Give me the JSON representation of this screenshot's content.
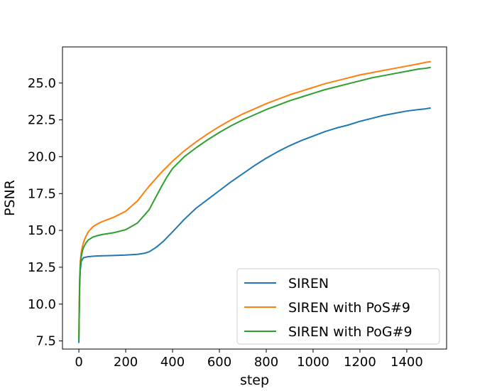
{
  "chart_data": {
    "type": "line",
    "title": "",
    "xlabel": "step",
    "ylabel": "PSNR",
    "xlim": [
      -70,
      1570
    ],
    "ylim": [
      6.95,
      27.45
    ],
    "xticks": [
      0,
      200,
      400,
      600,
      800,
      1000,
      1200,
      1400
    ],
    "yticks": [
      7.5,
      10.0,
      12.5,
      15.0,
      17.5,
      20.0,
      22.5,
      25.0
    ],
    "ytick_labels": [
      "7.5",
      "10.0",
      "12.5",
      "15.0",
      "17.5",
      "20.0",
      "22.5",
      "25.0"
    ],
    "grid": false,
    "legend_position": "lower-right",
    "series": [
      {
        "name": "SIREN",
        "color": "#1f77b4",
        "x": [
          0,
          3,
          6,
          10,
          20,
          40,
          80,
          150,
          200,
          250,
          280,
          300,
          330,
          360,
          400,
          450,
          500,
          550,
          600,
          650,
          700,
          750,
          800,
          850,
          900,
          950,
          1000,
          1050,
          1100,
          1150,
          1200,
          1250,
          1300,
          1350,
          1400,
          1450,
          1480,
          1500
        ],
        "y": [
          7.4,
          11.0,
          12.3,
          12.9,
          13.15,
          13.22,
          13.27,
          13.3,
          13.33,
          13.38,
          13.45,
          13.55,
          13.85,
          14.25,
          14.9,
          15.75,
          16.5,
          17.1,
          17.7,
          18.3,
          18.85,
          19.4,
          19.9,
          20.35,
          20.75,
          21.1,
          21.4,
          21.7,
          21.95,
          22.15,
          22.4,
          22.6,
          22.8,
          22.95,
          23.1,
          23.2,
          23.25,
          23.3
        ]
      },
      {
        "name": "SIREN with PoS#9",
        "color": "#ff7f0e",
        "x": [
          0,
          3,
          6,
          10,
          15,
          20,
          30,
          40,
          60,
          80,
          100,
          150,
          200,
          250,
          300,
          350,
          400,
          450,
          500,
          550,
          600,
          650,
          700,
          750,
          800,
          850,
          900,
          950,
          1000,
          1050,
          1100,
          1150,
          1200,
          1250,
          1300,
          1350,
          1400,
          1450,
          1480,
          1500
        ],
        "y": [
          7.8,
          11.5,
          12.9,
          13.5,
          13.9,
          14.2,
          14.6,
          14.9,
          15.25,
          15.45,
          15.6,
          15.9,
          16.3,
          17.0,
          18.0,
          18.9,
          19.7,
          20.4,
          21.0,
          21.55,
          22.05,
          22.5,
          22.9,
          23.25,
          23.6,
          23.9,
          24.2,
          24.45,
          24.7,
          24.95,
          25.15,
          25.35,
          25.55,
          25.7,
          25.85,
          26.0,
          26.15,
          26.3,
          26.4,
          26.45
        ]
      },
      {
        "name": "SIREN with PoG#9",
        "color": "#2ca02c",
        "x": [
          0,
          3,
          6,
          10,
          15,
          20,
          30,
          40,
          60,
          80,
          100,
          150,
          200,
          250,
          300,
          320,
          350,
          375,
          400,
          450,
          500,
          550,
          600,
          650,
          700,
          750,
          800,
          850,
          900,
          950,
          1000,
          1050,
          1100,
          1150,
          1200,
          1250,
          1300,
          1350,
          1400,
          1450,
          1480,
          1500
        ],
        "y": [
          7.6,
          11.3,
          12.6,
          13.2,
          13.6,
          13.85,
          14.15,
          14.35,
          14.55,
          14.65,
          14.72,
          14.85,
          15.05,
          15.5,
          16.4,
          17.0,
          17.9,
          18.6,
          19.2,
          20.0,
          20.6,
          21.15,
          21.65,
          22.1,
          22.5,
          22.85,
          23.2,
          23.5,
          23.8,
          24.05,
          24.3,
          24.55,
          24.75,
          24.95,
          25.15,
          25.35,
          25.5,
          25.65,
          25.8,
          25.95,
          26.0,
          26.05
        ]
      }
    ]
  }
}
